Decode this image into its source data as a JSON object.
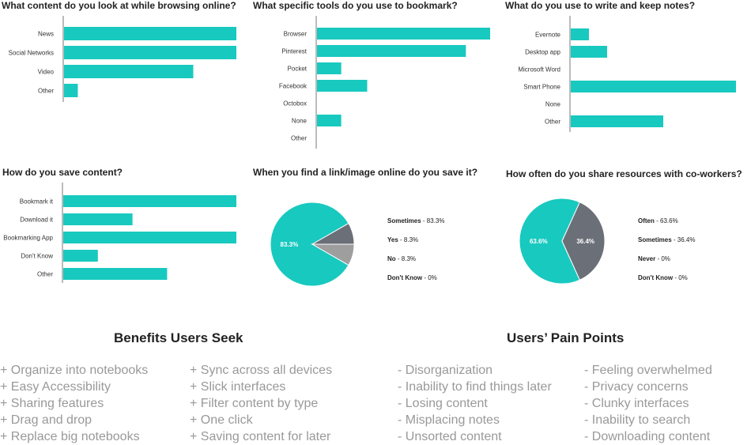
{
  "colors": {
    "teal": "#18c9bf",
    "gray": "#6b6f78",
    "light_gray": "#9e9e9e",
    "axis": "#777777"
  },
  "chart_data": [
    {
      "id": "browsing",
      "type": "bar",
      "orientation": "horizontal",
      "title": "What content do you look at while browsing online?",
      "categories": [
        "News",
        "Social Networks",
        "Video",
        "Other"
      ],
      "values": [
        100,
        100,
        75,
        8
      ],
      "xlim": [
        0,
        100
      ],
      "grid": false,
      "color": "#18c9bf"
    },
    {
      "id": "bookmark-tools",
      "type": "bar",
      "orientation": "horizontal",
      "title": "What specific tools do you use to bookmark?",
      "categories": [
        "Browser",
        "Pinterest",
        "Pocket",
        "Facebook",
        "Octobox",
        "None",
        "Other"
      ],
      "values": [
        100,
        86,
        14,
        29,
        0,
        14,
        0
      ],
      "xlim": [
        0,
        100
      ],
      "grid": false,
      "color": "#18c9bf"
    },
    {
      "id": "notes",
      "type": "bar",
      "orientation": "horizontal",
      "title": "What do you use to write and keep notes?",
      "categories": [
        "Evernote",
        "Desktop app",
        "Microsoft Word",
        "Smart Phone",
        "None",
        "Other"
      ],
      "values": [
        11,
        22,
        0,
        100,
        0,
        56
      ],
      "xlim": [
        0,
        100
      ],
      "grid": false,
      "color": "#18c9bf"
    },
    {
      "id": "save-content",
      "type": "bar",
      "orientation": "horizontal",
      "title": "How do you save content?",
      "categories": [
        "Bookmark it",
        "Download it",
        "Bookmarking App",
        "Don't Know",
        "Other"
      ],
      "values": [
        100,
        40,
        100,
        20,
        60
      ],
      "xlim": [
        0,
        100
      ],
      "grid": false,
      "color": "#18c9bf"
    },
    {
      "id": "save-link",
      "type": "pie",
      "title": "When you find a link/image online do you save it?",
      "slices": [
        {
          "label": "Sometimes",
          "value": 83.3,
          "value_text": "83.3%",
          "color": "#18c9bf",
          "slice_label": "83.3%"
        },
        {
          "label": "Yes",
          "value": 8.3,
          "value_text": "8.3%",
          "color": "#6b6f78",
          "slice_label": ""
        },
        {
          "label": "No",
          "value": 8.3,
          "value_text": "8.3%",
          "color": "#9e9e9e",
          "slice_label": ""
        },
        {
          "label": "Don't Know",
          "value": 0,
          "value_text": "0%",
          "color": "#cccccc",
          "slice_label": ""
        }
      ],
      "legend_position": "right"
    },
    {
      "id": "share-resources",
      "type": "pie",
      "title": "How often do you share resources with co-workers?",
      "slices": [
        {
          "label": "Often",
          "value": 63.6,
          "value_text": "63.6%",
          "color": "#18c9bf",
          "slice_label": "63.6%"
        },
        {
          "label": "Sometimes",
          "value": 36.4,
          "value_text": "36.4%",
          "color": "#6b6f78",
          "slice_label": "36.4%"
        },
        {
          "label": "Never",
          "value": 0,
          "value_text": "0%",
          "color": "#9e9e9e",
          "slice_label": ""
        },
        {
          "label": "Don't Know",
          "value": 0,
          "value_text": "0%",
          "color": "#cccccc",
          "slice_label": ""
        }
      ],
      "legend_position": "right"
    }
  ],
  "benefits": {
    "heading": "Benefits Users Seek",
    "columns": [
      [
        "+ Organize into notebooks",
        "+ Easy Accessibility",
        "+ Sharing features",
        "+ Drag and drop",
        "+ Replace big notebooks"
      ],
      [
        "+ Sync across all devices",
        "+ Slick interfaces",
        "+ Filter content by type",
        "+ One click",
        "+ Saving content for later"
      ]
    ]
  },
  "pain_points": {
    "heading": "Users’ Pain Points",
    "columns": [
      [
        "- Disorganization",
        "- Inability to find things later",
        "- Losing content",
        "- Misplacing notes",
        "- Unsorted content"
      ],
      [
        "- Feeling overwhelmed",
        "- Privacy concerns",
        "- Clunky interfaces",
        "- Inability to search",
        "- Downloading content"
      ]
    ]
  }
}
